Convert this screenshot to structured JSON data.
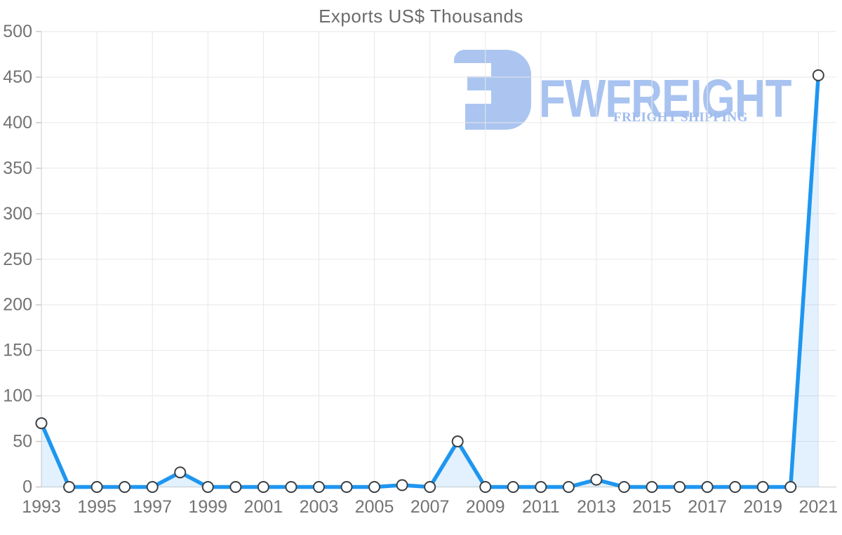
{
  "page": {
    "background": "#ffffff"
  },
  "chart_data": {
    "type": "area",
    "title": "Exports US$ Thousands",
    "series_name": "Exports US$ Thousands",
    "x": [
      1993,
      1994,
      1995,
      1996,
      1997,
      1998,
      1999,
      2000,
      2001,
      2002,
      2003,
      2004,
      2005,
      2006,
      2007,
      2008,
      2009,
      2010,
      2011,
      2012,
      2013,
      2014,
      2015,
      2016,
      2017,
      2018,
      2019,
      2020,
      2021
    ],
    "values": [
      70,
      0,
      0,
      0,
      0,
      16,
      0,
      0,
      0,
      0,
      0,
      0,
      0,
      2,
      0,
      50,
      0,
      0,
      0,
      0,
      8,
      0,
      0,
      0,
      0,
      0,
      0,
      0,
      452
    ],
    "xlabel": "",
    "ylabel": "",
    "ylim": [
      0,
      500
    ],
    "y_ticks": [
      0,
      50,
      100,
      150,
      200,
      250,
      300,
      350,
      400,
      450,
      500
    ],
    "x_tick_labels": [
      "1993",
      "1995",
      "1997",
      "1999",
      "2001",
      "2003",
      "2005",
      "2007",
      "2009",
      "2011",
      "2013",
      "2015",
      "2017",
      "2019",
      "2021"
    ],
    "grid": true,
    "legend": "none",
    "colors": {
      "line": "#1e96f0",
      "area_fill": "rgba(30,150,240,0.13)",
      "marker_fill": "#ffffff",
      "marker_stroke": "#3c4043",
      "grid": "#e7e7e7",
      "axis": "#d4d4d4",
      "tick": "#c9c9c9",
      "tick_label": "#737373",
      "title": "#6b6b6b"
    }
  },
  "logo": {
    "title": "FWFREIGHT",
    "subtitle": "FREIGHT SHIPPING",
    "icon": "fwfreight-mark",
    "icon_color": "#abc5f0",
    "title_color": "#a8c3f0",
    "subtitle_color": "#9fbcee"
  }
}
